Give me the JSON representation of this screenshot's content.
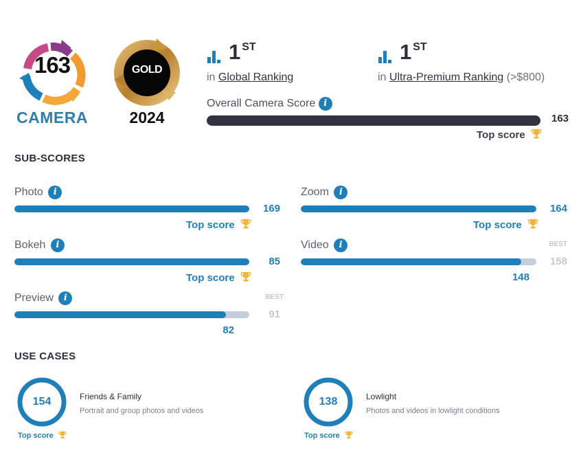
{
  "camera": {
    "score": "163",
    "label": "CAMERA"
  },
  "badge": {
    "label": "GOLD",
    "year": "2024"
  },
  "global_ranking": {
    "rank": "1",
    "suffix": "ST",
    "prefix": "in",
    "link": "Global Ranking"
  },
  "segment_ranking": {
    "rank": "1",
    "suffix": "ST",
    "prefix": "in",
    "link": "Ultra-Premium Ranking",
    "range": "(>$800)"
  },
  "overall": {
    "label": "Overall Camera Score",
    "value": "163",
    "fraction": 1.0,
    "top_label": "Top score"
  },
  "info_glyph": "i",
  "sub_scores": {
    "title": "SUB-SCORES",
    "items": [
      {
        "name": "Photo",
        "value": "169",
        "fraction": 1.0,
        "top_label": "Top score"
      },
      {
        "name": "Zoom",
        "value": "164",
        "fraction": 1.0,
        "top_label": "Top score"
      },
      {
        "name": "Bokeh",
        "value": "85",
        "fraction": 1.0,
        "top_label": "Top score"
      },
      {
        "name": "Video",
        "value": "148",
        "fraction": 0.9367,
        "best_label": "BEST",
        "best_value": "158"
      },
      {
        "name": "Preview",
        "value": "82",
        "fraction": 0.9011,
        "best_label": "BEST",
        "best_value": "91"
      }
    ]
  },
  "use_cases": {
    "title": "USE CASES",
    "items": [
      {
        "value": "154",
        "title": "Friends & Family",
        "desc": "Portrait and group photos and videos",
        "top_label": "Top score"
      },
      {
        "value": "138",
        "title": "Lowlight",
        "desc": "Photos and videos in lowlight conditions",
        "top_label": "Top score"
      }
    ]
  },
  "colors": {
    "accent": "#1f7fb8",
    "dark": "#2f3440",
    "track": "#c5ccda",
    "gold": "#c9963a",
    "trophy": "#f2b43a"
  },
  "icons": [
    "ranking-bars-icon",
    "info-icon",
    "trophy-icon"
  ]
}
